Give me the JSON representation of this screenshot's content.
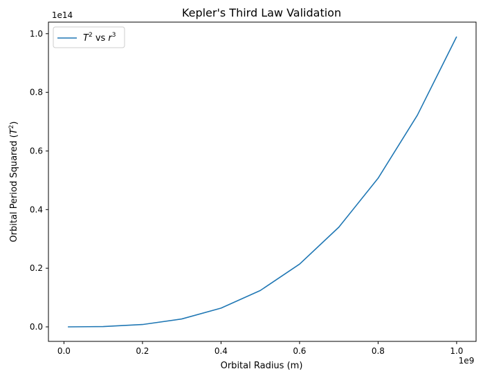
{
  "chart_data": {
    "type": "line",
    "title": "Kepler's Third Law Validation",
    "xlabel": "Orbital Radius (m)",
    "ylabel_parts": [
      "Orbital Period Squared (",
      "T",
      "2",
      ")"
    ],
    "x_offset_label": "1e9",
    "y_offset_label": "1e14",
    "x_scale": 1000000000.0,
    "y_scale": 100000000000000.0,
    "xlim": [
      -0.0395,
      1.0495
    ],
    "ylim": [
      -0.0495,
      1.0395
    ],
    "x_ticks": [
      0.0,
      0.2,
      0.4,
      0.6,
      0.8,
      1.0
    ],
    "x_tick_labels": [
      "0.0",
      "0.2",
      "0.4",
      "0.6",
      "0.8",
      "1.0"
    ],
    "y_ticks": [
      0.0,
      0.2,
      0.4,
      0.6,
      0.8,
      1.0
    ],
    "y_tick_labels": [
      "0.0",
      "0.2",
      "0.4",
      "0.6",
      "0.8",
      "1.0"
    ],
    "grid": false,
    "legend_position": "top-left",
    "legend": [
      {
        "parts": [
          "T",
          "2",
          " vs ",
          "r",
          "3"
        ],
        "color": "#1f77b4"
      }
    ],
    "series": [
      {
        "color": "#1f77b4",
        "x": [
          0.01,
          0.1,
          0.2,
          0.3,
          0.4,
          0.5,
          0.6,
          0.7,
          0.8,
          0.9,
          1.0
        ],
        "y": [
          0.0,
          0.001,
          0.008,
          0.027,
          0.064,
          0.124,
          0.214,
          0.34,
          0.507,
          0.722,
          0.99
        ]
      }
    ]
  }
}
